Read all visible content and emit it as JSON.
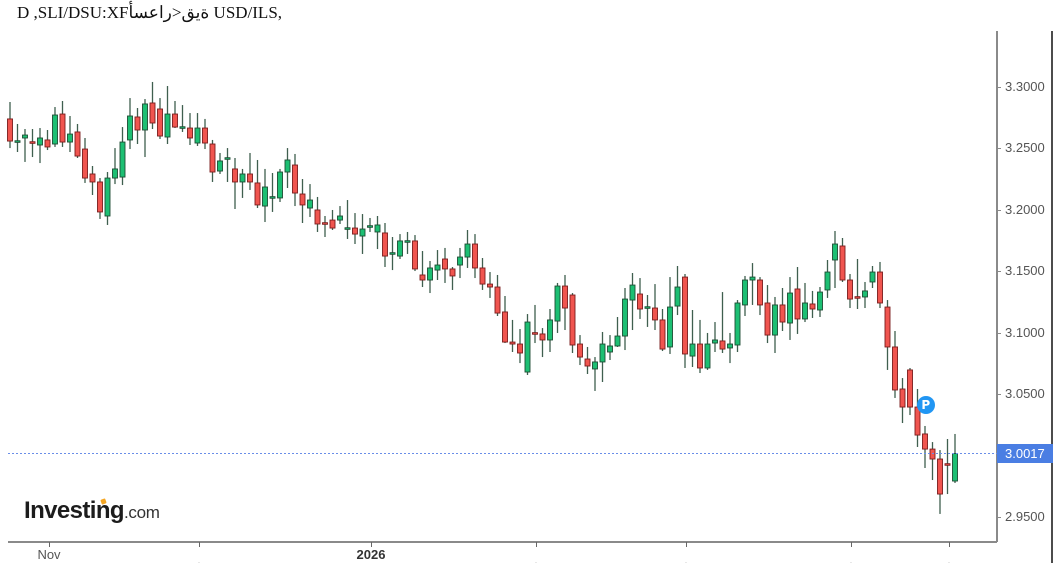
{
  "header": {
    "title": "D ,SLI/DSU:XFأسعار>قية USD/ILS,"
  },
  "branding": {
    "logo_main": "Investing",
    "logo_suffix": ".com",
    "accent_color": "#f5a623"
  },
  "price_marker": {
    "label": "3.0017",
    "value": 3.0017,
    "color": "#4a7ee3",
    "line_color": "#6a8ee8"
  },
  "event_marker": {
    "label": "P",
    "index": 122.1,
    "price": 3.0412,
    "color": "#2196f3"
  },
  "colors": {
    "up_fill": "#1dbf73",
    "up_stroke": "#1d4d33",
    "down_fill": "#f0554f",
    "down_stroke": "#7a1c1c",
    "wick": "#3f5f4f",
    "axis": "#8a8a8a",
    "frame": "#111111"
  },
  "y_axis": {
    "labels": [
      "3.3000",
      "3.2500",
      "3.2000",
      "3.1500",
      "3.1000",
      "3.0500",
      "2.9500"
    ]
  },
  "x_axis": {
    "ticks": [
      {
        "index": 5.2,
        "label": "Nov",
        "style": "normal"
      },
      {
        "index": 25.2,
        "label": ".",
        "style": "dot"
      },
      {
        "index": 48.13,
        "label": "2026",
        "style": "bold"
      },
      {
        "index": 70.13,
        "label": ".",
        "style": "dot"
      },
      {
        "index": 90.13,
        "label": ".",
        "style": "dot"
      },
      {
        "index": 112.13,
        "label": ".",
        "style": "dot"
      },
      {
        "index": 125.2,
        "label": ".",
        "style": "dot"
      }
    ]
  },
  "chart_data": {
    "type": "candlestick",
    "title": "USD/ILS, D",
    "symbol": "USD/ILS",
    "timeframe": "D",
    "xlabel": "",
    "ylabel": "",
    "ylim": [
      2.925,
      3.345
    ],
    "y_ticks": [
      3.3,
      3.25,
      3.2,
      3.15,
      3.1,
      3.05,
      3.0,
      2.95
    ],
    "x_tick_labels": [
      "Nov",
      "",
      "2026",
      "",
      "",
      "",
      ""
    ],
    "grid": false,
    "legend": [],
    "last_price": 3.0017,
    "candle_format": [
      "open",
      "high",
      "low",
      "close"
    ],
    "candles": [
      [
        3.274,
        3.2878,
        3.2503,
        3.256
      ],
      [
        3.2552,
        3.2699,
        3.2471,
        3.256
      ],
      [
        3.2585,
        3.2658,
        3.239,
        3.2609
      ],
      [
        3.2552,
        3.2658,
        3.243,
        3.2544
      ],
      [
        3.2528,
        3.2666,
        3.2381,
        3.2585
      ],
      [
        3.2569,
        3.265,
        3.2487,
        3.2512
      ],
      [
        3.2536,
        3.2837,
        3.2512,
        3.2772
      ],
      [
        3.278,
        3.2886,
        3.2512,
        3.2552
      ],
      [
        3.2552,
        3.2764,
        3.2471,
        3.2617
      ],
      [
        3.2634,
        3.2699,
        3.2422,
        3.2438
      ],
      [
        3.2495,
        3.2585,
        3.2219,
        3.2259
      ],
      [
        3.2292,
        3.2357,
        3.2121,
        3.2227
      ],
      [
        3.2227,
        3.2259,
        3.1926,
        3.1983
      ],
      [
        3.195,
        3.2308,
        3.1877,
        3.2259
      ],
      [
        3.2259,
        3.2503,
        3.221,
        3.2333
      ],
      [
        3.2267,
        3.2674,
        3.2202,
        3.2552
      ],
      [
        3.2569,
        3.291,
        3.2495,
        3.2764
      ],
      [
        3.2756,
        3.2829,
        3.2536,
        3.265
      ],
      [
        3.265,
        3.2902,
        3.243,
        3.2862
      ],
      [
        3.287,
        3.3041,
        3.2658,
        3.2707
      ],
      [
        3.2821,
        3.291,
        3.2577,
        3.2601
      ],
      [
        3.2593,
        3.3008,
        3.2536,
        3.278
      ],
      [
        3.278,
        3.2886,
        3.2666,
        3.2674
      ],
      [
        3.2666,
        3.2853,
        3.2634,
        3.2674
      ],
      [
        3.2666,
        3.2788,
        3.2528,
        3.2585
      ],
      [
        3.2544,
        3.2788,
        3.252,
        3.2666
      ],
      [
        3.2666,
        3.274,
        3.2495,
        3.2544
      ],
      [
        3.2536,
        3.2569,
        3.2227,
        3.2308
      ],
      [
        3.2316,
        3.2463,
        3.2292,
        3.2398
      ],
      [
        3.2414,
        3.2503,
        3.2227,
        3.2422
      ],
      [
        3.2333,
        3.2422,
        3.2007,
        3.2227
      ],
      [
        3.2227,
        3.2333,
        3.2097,
        3.2292
      ],
      [
        3.2292,
        3.2463,
        3.2162,
        3.2227
      ],
      [
        3.2219,
        3.2406,
        3.2015,
        3.204
      ],
      [
        3.2031,
        3.2333,
        3.1901,
        3.2186
      ],
      [
        3.2097,
        3.23,
        3.1983,
        3.2105
      ],
      [
        3.2097,
        3.2333,
        3.2064,
        3.2308
      ],
      [
        3.2308,
        3.2503,
        3.2178,
        3.2406
      ],
      [
        3.2365,
        3.2455,
        3.2031,
        3.2137
      ],
      [
        3.2129,
        3.2251,
        3.1893,
        3.204
      ],
      [
        3.2015,
        3.221,
        3.1942,
        3.208
      ],
      [
        3.1999,
        3.2105,
        3.182,
        3.1885
      ],
      [
        3.1893,
        3.195,
        3.1779,
        3.1885
      ],
      [
        3.1917,
        3.1999,
        3.1836,
        3.1852
      ],
      [
        3.1917,
        3.2031,
        3.1885,
        3.195
      ],
      [
        3.1844,
        3.208,
        3.1763,
        3.1852
      ],
      [
        3.1852,
        3.1974,
        3.1722,
        3.1803
      ],
      [
        3.1787,
        3.1966,
        3.1641,
        3.1844
      ],
      [
        3.186,
        3.1934,
        3.182,
        3.1869
      ],
      [
        3.182,
        3.195,
        3.1681,
        3.1877
      ],
      [
        3.1812,
        3.1893,
        3.1535,
        3.1624
      ],
      [
        3.1641,
        3.1779,
        3.151,
        3.1649
      ],
      [
        3.1624,
        3.1803,
        3.16,
        3.1747
      ],
      [
        3.1738,
        3.182,
        3.1641,
        3.1747
      ],
      [
        3.1747,
        3.1795,
        3.1502,
        3.1519
      ],
      [
        3.147,
        3.1665,
        3.1372,
        3.1429
      ],
      [
        3.1429,
        3.1584,
        3.1323,
        3.1527
      ],
      [
        3.151,
        3.1673,
        3.1429,
        3.1551
      ],
      [
        3.16,
        3.169,
        3.1405,
        3.1519
      ],
      [
        3.1519,
        3.1535,
        3.1348,
        3.1462
      ],
      [
        3.1551,
        3.169,
        3.1445,
        3.1616
      ],
      [
        3.1616,
        3.1836,
        3.1527,
        3.1722
      ],
      [
        3.1722,
        3.1803,
        3.1445,
        3.1527
      ],
      [
        3.1527,
        3.1608,
        3.1348,
        3.1396
      ],
      [
        3.1396,
        3.1494,
        3.1283,
        3.1372
      ],
      [
        3.1372,
        3.147,
        3.1136,
        3.116
      ],
      [
        3.1169,
        3.1299,
        3.0916,
        3.0924
      ],
      [
        3.0924,
        3.1104,
        3.0843,
        3.0908
      ],
      [
        3.0908,
        3.103,
        3.0753,
        3.0835
      ],
      [
        3.068,
        3.1152,
        3.0656,
        3.1087
      ],
      [
        3.0998,
        3.1226,
        3.0916,
        3.099
      ],
      [
        3.099,
        3.1038,
        3.0802,
        3.0941
      ],
      [
        3.0941,
        3.1193,
        3.0843,
        3.1104
      ],
      [
        3.1095,
        3.1405,
        3.0998,
        3.138
      ],
      [
        3.138,
        3.147,
        3.1022,
        3.1201
      ],
      [
        3.1307,
        3.1323,
        3.0835,
        3.09
      ],
      [
        3.0908,
        3.0981,
        3.0737,
        3.0802
      ],
      [
        3.0786,
        3.0884,
        3.0664,
        3.0729
      ],
      [
        3.0705,
        3.0802,
        3.0526,
        3.0762
      ],
      [
        3.0762,
        3.1006,
        3.0599,
        3.0908
      ],
      [
        3.0843,
        3.0981,
        3.0778,
        3.0892
      ],
      [
        3.0892,
        3.1128,
        3.0884,
        3.0973
      ],
      [
        3.0973,
        3.1364,
        3.0859,
        3.1274
      ],
      [
        3.1266,
        3.1486,
        3.1022,
        3.1388
      ],
      [
        3.1315,
        3.1445,
        3.1112,
        3.1193
      ],
      [
        3.1201,
        3.1307,
        3.1047,
        3.1209
      ],
      [
        3.1201,
        3.1396,
        3.1022,
        3.1104
      ],
      [
        3.1104,
        3.1193,
        3.0851,
        3.0867
      ],
      [
        3.0884,
        3.1453,
        3.0827,
        3.1209
      ],
      [
        3.1217,
        3.1543,
        3.1144,
        3.1372
      ],
      [
        3.1453,
        3.1478,
        3.0713,
        3.0827
      ],
      [
        3.081,
        3.1185,
        3.0721,
        3.0908
      ],
      [
        3.0908,
        3.1104,
        3.0672,
        3.0713
      ],
      [
        3.0713,
        3.0998,
        3.0697,
        3.0908
      ],
      [
        3.0916,
        3.1087,
        3.0843,
        3.0941
      ],
      [
        3.0933,
        3.1331,
        3.0835,
        3.0867
      ],
      [
        3.0876,
        3.0998,
        3.0753,
        3.0908
      ],
      [
        3.09,
        3.1266,
        3.0843,
        3.1242
      ],
      [
        3.1226,
        3.1462,
        3.1136,
        3.1429
      ],
      [
        3.1429,
        3.1567,
        3.1226,
        3.1453
      ],
      [
        3.1429,
        3.1453,
        3.1144,
        3.1226
      ],
      [
        3.1242,
        3.1388,
        3.0916,
        3.0981
      ],
      [
        3.0981,
        3.1291,
        3.0835,
        3.1226
      ],
      [
        3.1226,
        3.1364,
        3.1014,
        3.1087
      ],
      [
        3.1079,
        3.1453,
        3.0941,
        3.1323
      ],
      [
        3.1356,
        3.1535,
        3.099,
        3.1112
      ],
      [
        3.1112,
        3.1405,
        3.1087,
        3.1242
      ],
      [
        3.1234,
        3.134,
        3.112,
        3.1193
      ],
      [
        3.1185,
        3.1372,
        3.1128,
        3.1331
      ],
      [
        3.1348,
        3.1592,
        3.1283,
        3.1494
      ],
      [
        3.1592,
        3.1828,
        3.1364,
        3.1722
      ],
      [
        3.1706,
        3.1771,
        3.1413,
        3.1429
      ],
      [
        3.1429,
        3.1478,
        3.1201,
        3.1274
      ],
      [
        3.1291,
        3.16,
        3.1193,
        3.1283
      ],
      [
        3.1291,
        3.1413,
        3.1201,
        3.134
      ],
      [
        3.1413,
        3.1543,
        3.1364,
        3.1494
      ],
      [
        3.1494,
        3.1576,
        3.1201,
        3.1242
      ],
      [
        3.1209,
        3.1266,
        3.0697,
        3.0884
      ],
      [
        3.0884,
        3.1014,
        3.0469,
        3.0534
      ],
      [
        3.0542,
        3.0631,
        3.0265,
        3.0395
      ],
      [
        3.0697,
        3.0713,
        3.033,
        3.0395
      ],
      [
        3.0395,
        3.0542,
        3.007,
        3.0167
      ],
      [
        3.0176,
        3.0241,
        2.9899,
        3.0053
      ],
      [
        3.0053,
        3.011,
        2.9801,
        2.9972
      ],
      [
        2.9972,
        3.0045,
        2.9525,
        2.9687
      ],
      [
        2.9932,
        3.0135,
        2.9687,
        2.9923
      ],
      [
        2.9793,
        3.0176,
        2.9777,
        3.0017
      ]
    ]
  }
}
